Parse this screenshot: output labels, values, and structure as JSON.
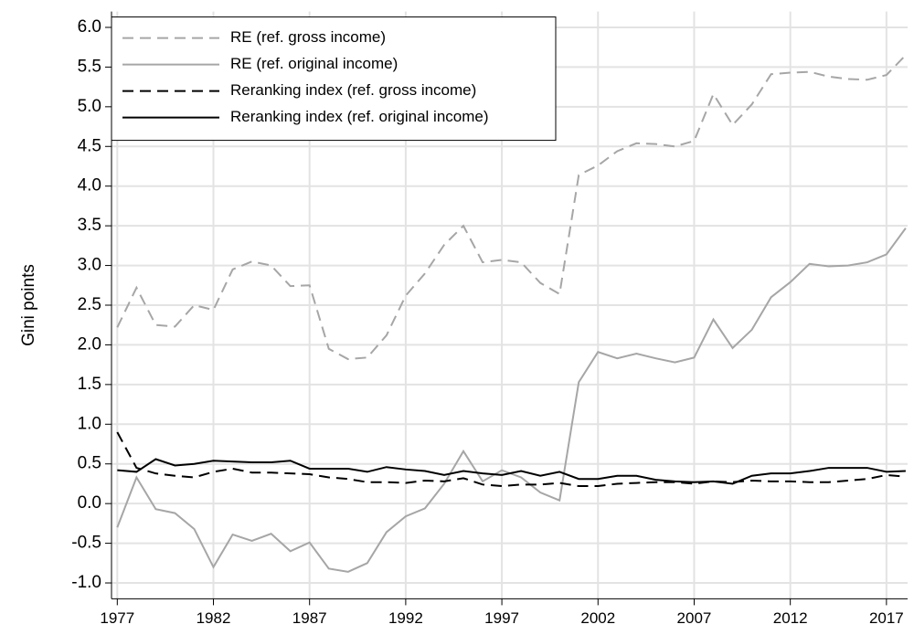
{
  "chart_data": {
    "type": "line",
    "y_label": "Gini points",
    "x": [
      1977,
      1978,
      1979,
      1980,
      1981,
      1982,
      1983,
      1984,
      1985,
      1986,
      1987,
      1988,
      1989,
      1990,
      1991,
      1992,
      1993,
      1994,
      1995,
      1996,
      1997,
      1998,
      1999,
      2000,
      2001,
      2002,
      2003,
      2004,
      2005,
      2006,
      2007,
      2008,
      2009,
      2010,
      2011,
      2012,
      2013,
      2014,
      2015,
      2016,
      2017,
      2018
    ],
    "series": [
      {
        "name": "RE (ref. gross income)",
        "color": "#a6a6a6",
        "dashed": true,
        "values": [
          2.22,
          2.72,
          2.25,
          2.23,
          2.5,
          2.44,
          2.95,
          3.05,
          3.0,
          2.74,
          2.75,
          1.95,
          1.82,
          1.84,
          2.12,
          2.62,
          2.9,
          3.26,
          3.5,
          3.04,
          3.07,
          3.04,
          2.78,
          2.64,
          4.14,
          4.26,
          4.44,
          4.54,
          4.53,
          4.5,
          4.57,
          5.16,
          4.77,
          5.03,
          5.41,
          5.43,
          5.44,
          5.38,
          5.35,
          5.34,
          5.4,
          5.65
        ]
      },
      {
        "name": "RE (ref. original income)",
        "color": "#a6a6a6",
        "dashed": false,
        "values": [
          -0.3,
          0.33,
          -0.07,
          -0.12,
          -0.32,
          -0.8,
          -0.39,
          -0.47,
          -0.38,
          -0.6,
          -0.49,
          -0.82,
          -0.86,
          -0.75,
          -0.36,
          -0.16,
          -0.06,
          0.25,
          0.66,
          0.28,
          0.42,
          0.33,
          0.14,
          0.04,
          1.53,
          1.91,
          1.83,
          1.89,
          1.83,
          1.78,
          1.84,
          2.32,
          1.96,
          2.19,
          2.6,
          2.79,
          3.02,
          2.99,
          3.0,
          3.04,
          3.14,
          3.47
        ]
      },
      {
        "name": "Reranking index (ref. gross income)",
        "color": "#000000",
        "dashed": true,
        "values": [
          0.9,
          0.45,
          0.38,
          0.35,
          0.33,
          0.4,
          0.44,
          0.39,
          0.39,
          0.38,
          0.37,
          0.33,
          0.31,
          0.27,
          0.27,
          0.26,
          0.29,
          0.28,
          0.32,
          0.24,
          0.22,
          0.24,
          0.24,
          0.26,
          0.22,
          0.22,
          0.25,
          0.26,
          0.27,
          0.27,
          0.25,
          0.28,
          0.27,
          0.29,
          0.28,
          0.28,
          0.27,
          0.27,
          0.29,
          0.31,
          0.36,
          0.34
        ]
      },
      {
        "name": "Reranking index (ref. original income)",
        "color": "#000000",
        "dashed": false,
        "values": [
          0.42,
          0.4,
          0.56,
          0.48,
          0.5,
          0.54,
          0.53,
          0.52,
          0.52,
          0.54,
          0.44,
          0.44,
          0.44,
          0.4,
          0.46,
          0.43,
          0.41,
          0.36,
          0.41,
          0.38,
          0.36,
          0.41,
          0.35,
          0.4,
          0.31,
          0.31,
          0.35,
          0.35,
          0.3,
          0.28,
          0.27,
          0.28,
          0.25,
          0.35,
          0.38,
          0.38,
          0.41,
          0.45,
          0.45,
          0.45,
          0.4,
          0.41
        ]
      }
    ],
    "xlim": [
      1976.7,
      2018.1
    ],
    "xticks": [
      1977,
      1982,
      1987,
      1992,
      1997,
      2002,
      2007,
      2012,
      2017
    ],
    "ylim": [
      -1.2,
      6.2
    ],
    "yticks": [
      {
        "value": 6,
        "label": "6.0"
      },
      5.5,
      {
        "value": 5,
        "label": "5.0"
      },
      4.5,
      {
        "value": 4,
        "label": "4.0"
      },
      3.5,
      {
        "value": 3,
        "label": "3.0"
      },
      2.5,
      {
        "value": 2,
        "label": "2.0"
      },
      1.5,
      {
        "value": 1,
        "label": "1.0"
      },
      0.5,
      {
        "value": 0,
        "label": "0.0"
      },
      -0.5,
      {
        "value": -1,
        "label": "-1.0"
      }
    ],
    "grid": true,
    "legend_position": "top-left"
  }
}
